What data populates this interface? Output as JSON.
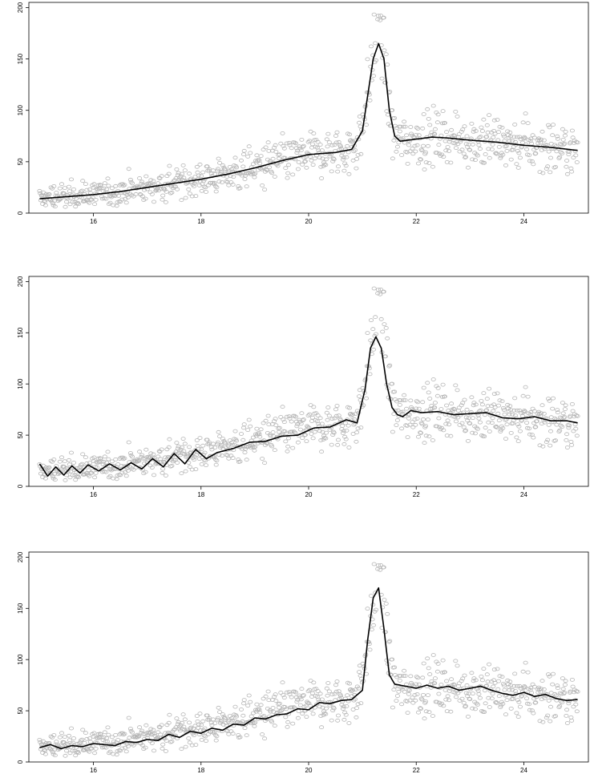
{
  "chart_data": [
    {
      "type": "scatter",
      "title": "",
      "xlabel": "",
      "ylabel": "",
      "xlim": [
        14.8,
        25.2
      ],
      "ylim": [
        0,
        205
      ],
      "xticks": [
        16,
        18,
        20,
        22,
        24
      ],
      "xtick_labels": [
        "16",
        "18",
        "20",
        "22",
        "24"
      ],
      "yticks": [
        0,
        50,
        100,
        150,
        200
      ],
      "ytick_labels": [
        "0",
        "50",
        "100",
        "150",
        "200"
      ],
      "grid": false,
      "legend": "none",
      "points_color": "#b5b5b5",
      "line_color": "#000000",
      "points": {
        "x_range": [
          15.0,
          25.0
        ],
        "count": 900,
        "trend": "smooth rise from about 14 at x=15 to about 60 at x=21, sharp peak near 200 at x=21.3, then about 70 declining to about 62 at x=25",
        "spread": "noise about ±10 to ±15 around the trend"
      },
      "series": [
        {
          "style": "smooth",
          "x": [
            15.0,
            15.5,
            16.0,
            16.5,
            17.0,
            17.5,
            18.0,
            18.5,
            19.0,
            19.5,
            20.0,
            20.5,
            20.8,
            21.0,
            21.1,
            21.2,
            21.3,
            21.4,
            21.5,
            21.6,
            21.7,
            22.0,
            22.3,
            22.6,
            23.0,
            23.5,
            24.0,
            24.5,
            25.0
          ],
          "y": [
            14,
            16,
            18,
            21,
            25,
            29,
            33,
            38,
            44,
            51,
            57,
            59,
            62,
            80,
            115,
            150,
            165,
            150,
            100,
            75,
            70,
            72,
            74,
            73,
            71,
            69,
            66,
            64,
            61
          ]
        }
      ]
    },
    {
      "type": "scatter",
      "title": "",
      "xlabel": "",
      "ylabel": "",
      "xlim": [
        14.8,
        25.2
      ],
      "ylim": [
        0,
        205
      ],
      "xticks": [
        16,
        18,
        20,
        22,
        24
      ],
      "xtick_labels": [
        "16",
        "18",
        "20",
        "22",
        "24"
      ],
      "yticks": [
        0,
        50,
        100,
        150,
        200
      ],
      "ytick_labels": [
        "0",
        "50",
        "100",
        "150",
        "200"
      ],
      "grid": false,
      "legend": "none",
      "points_color": "#b5b5b5",
      "line_color": "#000000",
      "points": {
        "x_range": [
          15.0,
          25.0
        ],
        "count": 900,
        "trend": "same data as panel 1",
        "spread": "noise about ±10 to ±15 around the trend"
      },
      "series": [
        {
          "style": "oscillating",
          "x": [
            15.0,
            15.15,
            15.3,
            15.45,
            15.6,
            15.75,
            15.9,
            16.1,
            16.3,
            16.5,
            16.7,
            16.9,
            17.1,
            17.3,
            17.5,
            17.7,
            17.9,
            18.1,
            18.3,
            18.6,
            18.9,
            19.2,
            19.5,
            19.8,
            20.1,
            20.4,
            20.7,
            20.9,
            21.05,
            21.15,
            21.25,
            21.35,
            21.45,
            21.55,
            21.65,
            21.75,
            21.9,
            22.1,
            22.4,
            22.7,
            23.0,
            23.3,
            23.6,
            23.9,
            24.2,
            24.5,
            24.8,
            25.0
          ],
          "y": [
            22,
            10,
            19,
            11,
            20,
            13,
            21,
            15,
            22,
            16,
            23,
            17,
            27,
            19,
            32,
            22,
            36,
            27,
            33,
            37,
            43,
            44,
            49,
            50,
            57,
            58,
            65,
            62,
            95,
            135,
            146,
            135,
            100,
            77,
            70,
            68,
            74,
            72,
            73,
            70,
            71,
            72,
            67,
            66,
            68,
            64,
            64,
            62
          ]
        }
      ]
    },
    {
      "type": "scatter",
      "title": "",
      "xlabel": "",
      "ylabel": "",
      "xlim": [
        14.8,
        25.2
      ],
      "ylim": [
        0,
        205
      ],
      "xticks": [
        16,
        18,
        20,
        22,
        24
      ],
      "xtick_labels": [
        "16",
        "18",
        "20",
        "22",
        "24"
      ],
      "yticks": [
        0,
        50,
        100,
        150,
        200
      ],
      "ytick_labels": [
        "0",
        "50",
        "100",
        "150",
        "200"
      ],
      "grid": false,
      "legend": "none",
      "points_color": "#b5b5b5",
      "line_color": "#000000",
      "points": {
        "x_range": [
          15.0,
          25.0
        ],
        "count": 900,
        "trend": "same data as panel 1",
        "spread": "noise about ±10 to ±15 around the trend"
      },
      "series": [
        {
          "style": "wiggly",
          "x": [
            15.0,
            15.2,
            15.4,
            15.6,
            15.8,
            16.0,
            16.2,
            16.4,
            16.6,
            16.8,
            17.0,
            17.2,
            17.4,
            17.6,
            17.8,
            18.0,
            18.2,
            18.4,
            18.6,
            18.8,
            19.0,
            19.2,
            19.4,
            19.6,
            19.8,
            20.0,
            20.2,
            20.4,
            20.6,
            20.8,
            21.0,
            21.1,
            21.2,
            21.3,
            21.4,
            21.5,
            21.6,
            21.8,
            22.0,
            22.2,
            22.4,
            22.6,
            22.8,
            23.0,
            23.2,
            23.4,
            23.6,
            23.8,
            24.0,
            24.2,
            24.4,
            24.6,
            24.8,
            25.0
          ],
          "y": [
            14,
            17,
            13,
            16,
            15,
            18,
            17,
            16,
            20,
            19,
            22,
            21,
            27,
            24,
            30,
            28,
            33,
            31,
            37,
            36,
            43,
            42,
            46,
            47,
            52,
            51,
            58,
            57,
            60,
            61,
            70,
            120,
            160,
            170,
            130,
            85,
            76,
            74,
            72,
            75,
            72,
            74,
            70,
            72,
            74,
            70,
            67,
            65,
            68,
            64,
            66,
            62,
            60,
            61
          ]
        }
      ]
    }
  ]
}
